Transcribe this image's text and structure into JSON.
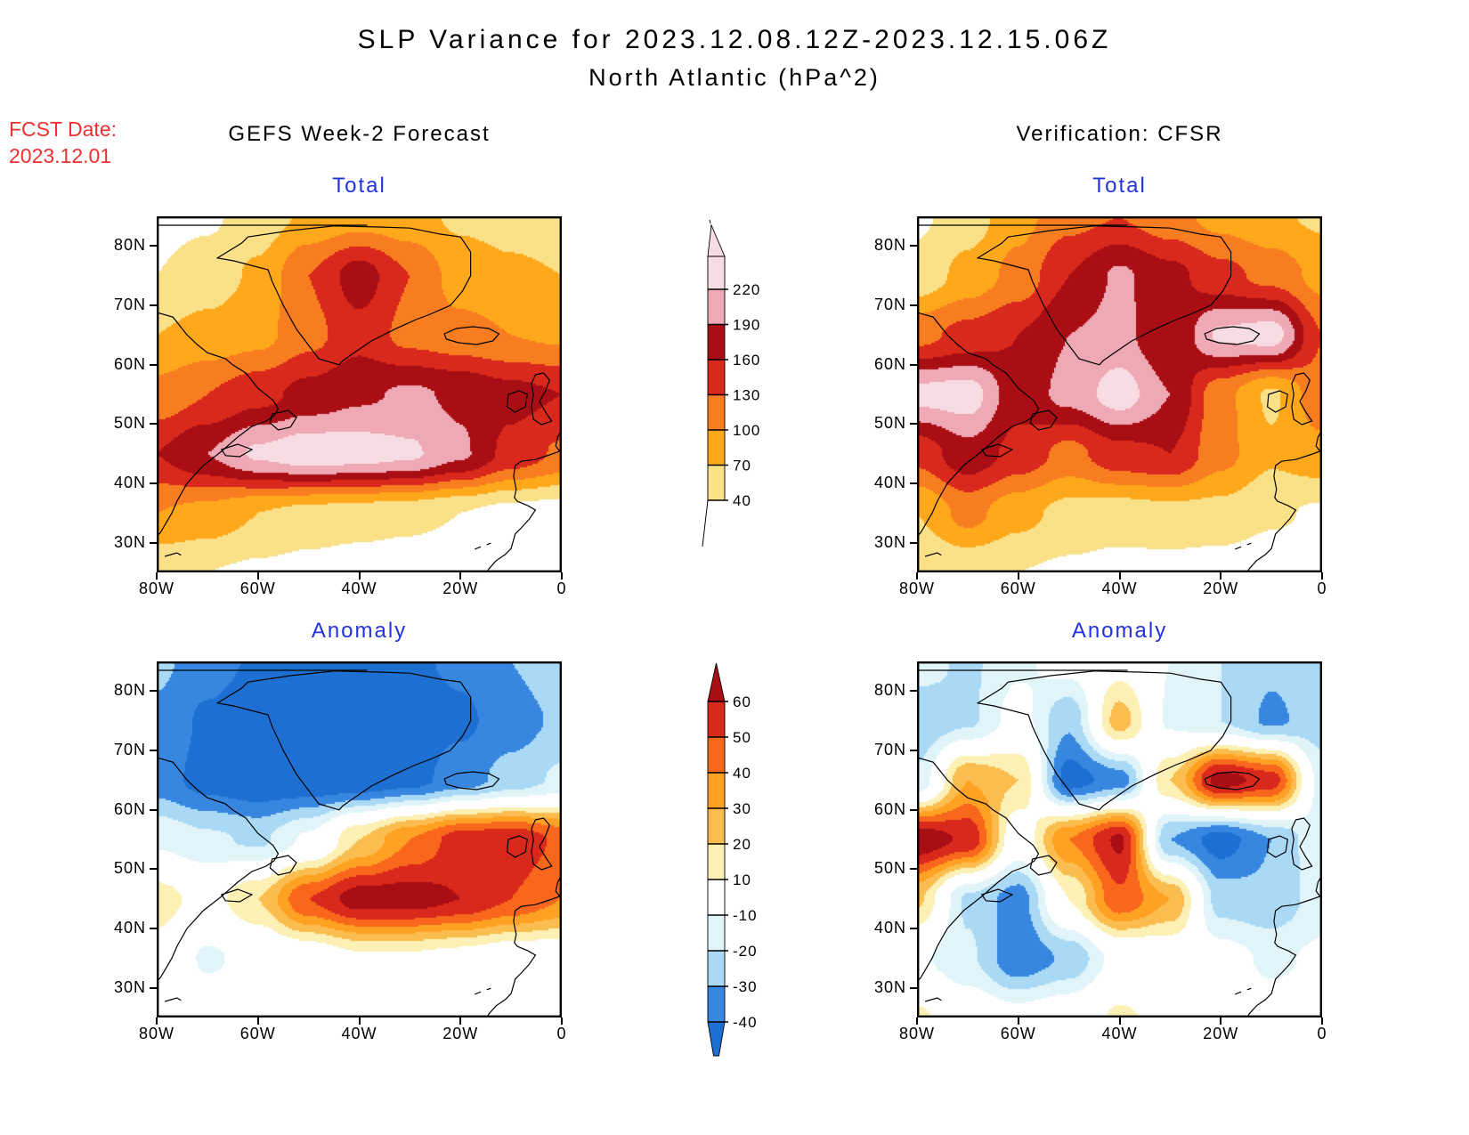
{
  "title": {
    "line1": "SLP Variance for 2023.12.08.12Z-2023.12.15.06Z",
    "line2": "North Atlantic (hPa^2)"
  },
  "fcst_date": {
    "label": "FCST Date:",
    "value": "2023.12.01",
    "color": "#f03030"
  },
  "columns": [
    {
      "header": "GEFS Week-2 Forecast"
    },
    {
      "header": "Verification: CFSR"
    }
  ],
  "panel_title_color": "#2233dd",
  "axes": {
    "lat_tick_labels": [
      "80N",
      "70N",
      "60N",
      "50N",
      "40N",
      "30N"
    ],
    "lat_tick_values": [
      80,
      70,
      60,
      50,
      40,
      30
    ],
    "lon_tick_labels": [
      "80W",
      "60W",
      "40W",
      "20W",
      "0"
    ],
    "lon_tick_values": [
      -80,
      -60,
      -40,
      -20,
      0
    ],
    "lat_range": [
      25,
      85
    ],
    "lon_range": [
      -80,
      0
    ]
  },
  "colorbars": {
    "total": {
      "levels": [
        40,
        70,
        100,
        130,
        160,
        190,
        220
      ],
      "labels": [
        "220",
        "190",
        "160",
        "130",
        "100",
        "70",
        "40"
      ],
      "colors": {
        "below": "#ffffff",
        "bands": [
          "#fae187",
          "#ffa81c",
          "#f87d20",
          "#d9291c",
          "#a90e15",
          "#efa9b4"
        ],
        "above": "#f7dce3"
      }
    },
    "anomaly": {
      "levels": [
        -40,
        -30,
        -20,
        -10,
        10,
        20,
        30,
        40,
        50,
        60
      ],
      "labels": [
        "60",
        "50",
        "40",
        "30",
        "20",
        "10",
        "-10",
        "-20",
        "-30",
        "-40"
      ],
      "colors": {
        "below": "#1e6fd2",
        "bands": [
          "#3787e0",
          "#a9d9f5",
          "#e0f4fa",
          "#ffffff",
          "#fcf0b5",
          "#fbbd4f",
          "#ffa122",
          "#f8671c",
          "#d9291c"
        ],
        "above": "#a90e15"
      }
    }
  },
  "chart_data": [
    {
      "type": "heatmap",
      "name": "GEFS Week-2 Forecast - Total SLP Variance",
      "panel_title": "Total",
      "units": "hPa^2",
      "lons": [
        -80,
        -70,
        -60,
        -50,
        -40,
        -30,
        -20,
        -10,
        0
      ],
      "lats": [
        85,
        75,
        65,
        55,
        45,
        35,
        25
      ],
      "values": [
        [
          30,
          35,
          55,
          75,
          85,
          80,
          65,
          60,
          55
        ],
        [
          40,
          55,
          75,
          130,
          175,
          130,
          85,
          75,
          70
        ],
        [
          70,
          80,
          90,
          120,
          150,
          120,
          110,
          100,
          95
        ],
        [
          110,
          130,
          150,
          170,
          185,
          195,
          185,
          170,
          160
        ],
        [
          160,
          190,
          225,
          240,
          235,
          225,
          195,
          150,
          125
        ],
        [
          100,
          90,
          70,
          60,
          55,
          50,
          40,
          30,
          25
        ],
        [
          45,
          40,
          35,
          30,
          25,
          20,
          15,
          15,
          15
        ]
      ]
    },
    {
      "type": "heatmap",
      "name": "Verification CFSR - Total SLP Variance",
      "panel_title": "Total",
      "units": "hPa^2",
      "lons": [
        -80,
        -70,
        -60,
        -50,
        -40,
        -30,
        -20,
        -10,
        0
      ],
      "lats": [
        85,
        75,
        65,
        55,
        45,
        35,
        25
      ],
      "values": [
        [
          35,
          55,
          90,
          120,
          130,
          110,
          90,
          75,
          65
        ],
        [
          50,
          80,
          110,
          160,
          195,
          170,
          140,
          120,
          90
        ],
        [
          120,
          140,
          160,
          190,
          200,
          160,
          225,
          235,
          130
        ],
        [
          230,
          235,
          170,
          200,
          235,
          190,
          110,
          65,
          120
        ],
        [
          140,
          180,
          150,
          120,
          150,
          160,
          110,
          75,
          90
        ],
        [
          70,
          110,
          80,
          60,
          55,
          60,
          60,
          45,
          35
        ],
        [
          40,
          45,
          40,
          35,
          30,
          30,
          25,
          20,
          15
        ]
      ]
    },
    {
      "type": "heatmap",
      "name": "GEFS Week-2 Forecast - SLP Variance Anomaly",
      "panel_title": "Anomaly",
      "units": "hPa^2",
      "lons": [
        -80,
        -70,
        -60,
        -50,
        -40,
        -30,
        -20,
        -10,
        0
      ],
      "lats": [
        85,
        75,
        65,
        55,
        45,
        35,
        25
      ],
      "values": [
        [
          -28,
          -35,
          -42,
          -45,
          -45,
          -42,
          -38,
          -30,
          -22
        ],
        [
          -32,
          -42,
          -48,
          -48,
          -48,
          -46,
          -42,
          -35,
          -28
        ],
        [
          -35,
          -44,
          -48,
          -48,
          -48,
          -44,
          -35,
          -26,
          -18
        ],
        [
          -12,
          -18,
          -22,
          -8,
          20,
          40,
          55,
          58,
          48
        ],
        [
          15,
          5,
          20,
          50,
          65,
          65,
          60,
          50,
          40
        ],
        [
          5,
          -12,
          -5,
          0,
          8,
          8,
          5,
          0,
          0
        ],
        [
          0,
          0,
          0,
          0,
          2,
          2,
          0,
          0,
          0
        ]
      ]
    },
    {
      "type": "heatmap",
      "name": "Verification CFSR - SLP Variance Anomaly",
      "panel_title": "Anomaly",
      "units": "hPa^2",
      "lons": [
        -80,
        -70,
        -60,
        -50,
        -40,
        -30,
        -20,
        -10,
        0
      ],
      "lats": [
        85,
        75,
        65,
        55,
        45,
        35,
        25
      ],
      "values": [
        [
          -15,
          -22,
          -12,
          -5,
          5,
          -10,
          -20,
          -28,
          -22
        ],
        [
          -28,
          -22,
          -5,
          -28,
          25,
          -12,
          -20,
          -32,
          -25
        ],
        [
          -18,
          30,
          20,
          -45,
          -35,
          20,
          65,
          55,
          -15
        ],
        [
          68,
          58,
          0,
          40,
          62,
          -30,
          -45,
          -30,
          -12
        ],
        [
          22,
          -22,
          -35,
          10,
          48,
          30,
          -25,
          -28,
          -15
        ],
        [
          -8,
          -18,
          -38,
          -28,
          -5,
          0,
          -5,
          -12,
          -8
        ],
        [
          12,
          0,
          -5,
          0,
          12,
          5,
          0,
          -5,
          -5
        ]
      ]
    }
  ]
}
